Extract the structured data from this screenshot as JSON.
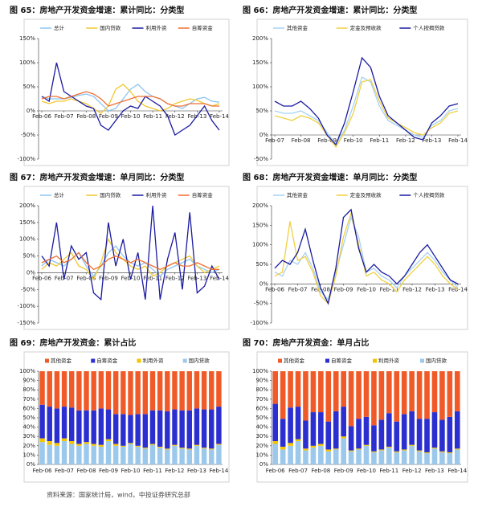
{
  "footer": "资料来源：国家统计局，wind，中投证券研究总部",
  "chart_data": [
    {
      "type": "line",
      "title": "图 65：房地产开发资金增速：累计同比：分类型",
      "categories": [
        "Feb-06",
        null,
        null,
        "Feb-07",
        null,
        null,
        "Feb-08",
        null,
        null,
        "Feb-09",
        null,
        null,
        "Feb-10",
        null,
        null,
        "Feb-11",
        null,
        null,
        "Feb-12",
        null,
        null,
        "Feb-13",
        null,
        null,
        "Feb-14"
      ],
      "ylim": [
        -100,
        150
      ],
      "yticks": [
        {
          "value": -100,
          "label": "-100%"
        },
        {
          "value": -50,
          "label": "-50%"
        },
        {
          "value": 0,
          "label": "0%"
        },
        {
          "value": 50,
          "label": "50%"
        },
        {
          "value": 100,
          "label": "100%"
        },
        {
          "value": 150,
          "label": "150%"
        }
      ],
      "series": [
        {
          "name": "总计",
          "color": "#8ec5f0",
          "values": [
            30,
            25,
            25,
            25,
            28,
            32,
            35,
            30,
            15,
            0,
            5,
            25,
            45,
            55,
            40,
            30,
            25,
            15,
            10,
            5,
            15,
            25,
            28,
            20,
            18
          ]
        },
        {
          "name": "国内贷款",
          "color": "#f0c830",
          "values": [
            20,
            15,
            20,
            20,
            25,
            20,
            15,
            5,
            -5,
            10,
            45,
            55,
            40,
            20,
            10,
            5,
            0,
            5,
            15,
            20,
            25,
            22,
            15,
            10,
            15
          ]
        },
        {
          "name": "利用外资",
          "color": "#1a1aa0",
          "values": [
            30,
            20,
            100,
            40,
            30,
            20,
            10,
            5,
            -30,
            -40,
            -20,
            0,
            10,
            5,
            30,
            20,
            10,
            -10,
            -50,
            -40,
            -30,
            -10,
            10,
            -20,
            -40
          ]
        },
        {
          "name": "自筹资金",
          "color": "#f07030",
          "values": [
            25,
            30,
            30,
            25,
            30,
            35,
            40,
            35,
            25,
            10,
            15,
            20,
            25,
            30,
            30,
            30,
            25,
            15,
            10,
            10,
            15,
            15,
            15,
            10,
            10
          ]
        }
      ]
    },
    {
      "type": "line",
      "title": "图 66：房地产开发资金增速：累计同比：分类型",
      "categories": [
        "Feb-07",
        null,
        null,
        "Feb-08",
        null,
        null,
        "Feb-09",
        null,
        null,
        "Feb-10",
        null,
        null,
        "Feb-11",
        null,
        null,
        "Feb-12",
        null,
        null,
        "Feb-13",
        null,
        null,
        "Feb-14"
      ],
      "ylim": [
        -50,
        200
      ],
      "yticks": [
        {
          "value": -50,
          "label": "-50%"
        },
        {
          "value": 0,
          "label": "0%"
        },
        {
          "value": 50,
          "label": "50%"
        },
        {
          "value": 100,
          "label": "100%"
        },
        {
          "value": 150,
          "label": "150%"
        },
        {
          "value": 200,
          "label": "200%"
        }
      ],
      "series": [
        {
          "name": "其他资金",
          "color": "#a6d2f2",
          "values": [
            50,
            45,
            45,
            50,
            40,
            30,
            5,
            -20,
            10,
            60,
            120,
            110,
            60,
            30,
            20,
            10,
            0,
            -5,
            20,
            30,
            50,
            55
          ]
        },
        {
          "name": "定金及预收款",
          "color": "#f0d040",
          "values": [
            40,
            35,
            30,
            40,
            35,
            25,
            0,
            -25,
            5,
            45,
            110,
            115,
            70,
            35,
            25,
            15,
            5,
            0,
            15,
            25,
            45,
            50
          ]
        },
        {
          "name": "个人按揭贷款",
          "color": "#1a1aa0",
          "values": [
            70,
            60,
            60,
            70,
            55,
            35,
            0,
            -20,
            25,
            90,
            160,
            140,
            80,
            40,
            25,
            10,
            -5,
            -10,
            25,
            40,
            60,
            65
          ]
        }
      ]
    },
    {
      "type": "line",
      "title": "图 67：房地产开发资金增速：单月同比：分类型",
      "categories": [
        "Feb-06",
        null,
        null,
        "Feb-07",
        null,
        null,
        "Feb-08",
        null,
        null,
        "Feb-09",
        null,
        null,
        "Feb-10",
        null,
        null,
        "Feb-11",
        null,
        null,
        "Feb-12",
        null,
        null,
        "Feb-13",
        null,
        null,
        "Feb-14"
      ],
      "ylim": [
        -150,
        200
      ],
      "yticks": [
        {
          "value": -150,
          "label": "-150%"
        },
        {
          "value": -100,
          "label": "-100%"
        },
        {
          "value": -50,
          "label": "-50%"
        },
        {
          "value": 0,
          "label": "0%"
        },
        {
          "value": 50,
          "label": "50%"
        },
        {
          "value": 100,
          "label": "100%"
        },
        {
          "value": 150,
          "label": "150%"
        },
        {
          "value": 200,
          "label": "200%"
        }
      ],
      "series": [
        {
          "name": "总计",
          "color": "#8ec5f0",
          "values": [
            20,
            40,
            30,
            20,
            40,
            60,
            20,
            -10,
            20,
            60,
            80,
            50,
            30,
            20,
            30,
            10,
            -10,
            10,
            20,
            30,
            40,
            20,
            10,
            0,
            10
          ]
        },
        {
          "name": "国内贷款",
          "color": "#f0c830",
          "values": [
            10,
            30,
            20,
            40,
            60,
            20,
            10,
            -20,
            30,
            100,
            60,
            40,
            20,
            10,
            20,
            -10,
            0,
            20,
            30,
            40,
            50,
            20,
            0,
            10,
            20
          ]
        },
        {
          "name": "利用外资",
          "color": "#1a1aa0",
          "values": [
            50,
            20,
            150,
            -20,
            80,
            40,
            60,
            -60,
            -80,
            150,
            20,
            100,
            -20,
            60,
            -80,
            200,
            -80,
            40,
            120,
            -50,
            180,
            -60,
            -40,
            20,
            -20
          ]
        },
        {
          "name": "自筹资金",
          "color": "#f07030",
          "values": [
            30,
            40,
            50,
            30,
            40,
            60,
            30,
            10,
            20,
            40,
            50,
            40,
            30,
            40,
            30,
            20,
            10,
            20,
            30,
            20,
            20,
            30,
            20,
            10,
            10
          ]
        }
      ]
    },
    {
      "type": "line",
      "title": "图 68：房地产开发资金增速：单月同比：分类型",
      "categories": [
        "Feb-06",
        null,
        null,
        "Feb-07",
        null,
        null,
        "Feb-08",
        null,
        null,
        "Feb-09",
        null,
        null,
        "Feb-10",
        null,
        null,
        "Feb-11",
        null,
        null,
        "Feb-12",
        null,
        null,
        "Feb-13",
        null,
        null,
        "Feb-14"
      ],
      "ylim": [
        -100,
        200
      ],
      "yticks": [
        {
          "value": -100,
          "label": "-100%"
        },
        {
          "value": -50,
          "label": "-50%"
        },
        {
          "value": 0,
          "label": "0%"
        },
        {
          "value": 50,
          "label": "50%"
        },
        {
          "value": 100,
          "label": "100%"
        },
        {
          "value": 150,
          "label": "150%"
        },
        {
          "value": 200,
          "label": "200%"
        }
      ],
      "series": [
        {
          "name": "其他资金",
          "color": "#a6d2f2",
          "values": [
            30,
            20,
            60,
            50,
            80,
            40,
            -20,
            -40,
            30,
            100,
            170,
            120,
            30,
            40,
            20,
            10,
            -10,
            20,
            40,
            60,
            80,
            60,
            30,
            10,
            -10
          ]
        },
        {
          "name": "定金及预收款",
          "color": "#f0d040",
          "values": [
            20,
            30,
            160,
            60,
            70,
            30,
            -30,
            -50,
            20,
            120,
            180,
            100,
            20,
            30,
            10,
            0,
            -20,
            10,
            30,
            50,
            70,
            50,
            20,
            0,
            -15
          ]
        },
        {
          "name": "个人按揭贷款",
          "color": "#1a1aa0",
          "values": [
            40,
            60,
            50,
            80,
            140,
            60,
            -10,
            -50,
            40,
            170,
            190,
            90,
            30,
            50,
            30,
            20,
            0,
            20,
            50,
            80,
            100,
            70,
            40,
            10,
            0
          ]
        }
      ]
    },
    {
      "type": "bar",
      "stacked": true,
      "title": "图 69：房地产开发资金：累计占比",
      "categories": [
        "Feb-06",
        null,
        null,
        "Feb-07",
        null,
        null,
        "Feb-08",
        null,
        null,
        "Feb-09",
        null,
        null,
        "Feb-10",
        null,
        null,
        "Feb-11",
        null,
        null,
        "Feb-12",
        null,
        null,
        "Feb-13",
        null,
        null,
        "Feb-14"
      ],
      "ylim": [
        0,
        100
      ],
      "yticks": [
        {
          "value": 0,
          "label": "0%"
        },
        {
          "value": 10,
          "label": "10%"
        },
        {
          "value": 20,
          "label": "20%"
        },
        {
          "value": 30,
          "label": "30%"
        },
        {
          "value": 40,
          "label": "40%"
        },
        {
          "value": 50,
          "label": "50%"
        },
        {
          "value": 60,
          "label": "60%"
        },
        {
          "value": 70,
          "label": "70%"
        },
        {
          "value": 80,
          "label": "80%"
        },
        {
          "value": 90,
          "label": "90%"
        },
        {
          "value": 100,
          "label": "100%"
        }
      ],
      "series": [
        {
          "name": "其他资金",
          "color": "#f05a28",
          "values": [
            36,
            38,
            40,
            38,
            39,
            42,
            42,
            42,
            40,
            41,
            46,
            46,
            47,
            46,
            46,
            42,
            42,
            43,
            41,
            42,
            42,
            40,
            41,
            41,
            38
          ]
        },
        {
          "name": "自筹资金",
          "color": "#2b2fd0",
          "values": [
            36,
            37,
            37,
            34,
            36,
            36,
            34,
            36,
            39,
            32,
            32,
            34,
            30,
            34,
            36,
            36,
            39,
            40,
            38,
            40,
            41,
            39,
            41,
            42,
            40
          ]
        },
        {
          "name": "利用外资",
          "color": "#f5c400",
          "values": [
            4,
            4,
            3,
            3,
            3,
            2,
            2,
            2,
            2,
            2,
            2,
            1,
            1,
            1,
            1,
            1,
            1,
            1,
            1,
            1,
            1,
            1,
            1,
            1,
            1
          ]
        },
        {
          "name": "国内贷款",
          "color": "#9cc8ec",
          "values": [
            24,
            21,
            20,
            25,
            22,
            20,
            22,
            20,
            19,
            25,
            20,
            19,
            22,
            19,
            17,
            21,
            18,
            16,
            20,
            17,
            16,
            20,
            17,
            16,
            21
          ]
        }
      ]
    },
    {
      "type": "bar",
      "stacked": true,
      "title": "图 70：房地产开发资金：单月占比",
      "categories": [
        "Feb-06",
        null,
        null,
        "Feb-07",
        null,
        null,
        "Feb-08",
        null,
        null,
        "Feb-09",
        null,
        null,
        "Feb-10",
        null,
        null,
        "Feb-11",
        null,
        null,
        "Feb-12",
        null,
        null,
        "Feb-13",
        null,
        null,
        "Feb-14"
      ],
      "ylim": [
        0,
        100
      ],
      "yticks": [
        {
          "value": 0,
          "label": "0%"
        },
        {
          "value": 10,
          "label": "10%"
        },
        {
          "value": 20,
          "label": "20%"
        },
        {
          "value": 30,
          "label": "30%"
        },
        {
          "value": 40,
          "label": "40%"
        },
        {
          "value": 50,
          "label": "50%"
        },
        {
          "value": 60,
          "label": "60%"
        },
        {
          "value": 70,
          "label": "70%"
        },
        {
          "value": 80,
          "label": "80%"
        },
        {
          "value": 90,
          "label": "90%"
        },
        {
          "value": 100,
          "label": "100%"
        }
      ],
      "series": [
        {
          "name": "其他资金",
          "color": "#f05a28",
          "values": [
            35,
            51,
            39,
            38,
            53,
            44,
            44,
            54,
            43,
            38,
            59,
            51,
            49,
            58,
            52,
            45,
            54,
            46,
            43,
            51,
            51,
            44,
            52,
            49,
            43
          ]
        },
        {
          "name": "自筹资金",
          "color": "#2b2fd0",
          "values": [
            40,
            30,
            38,
            35,
            30,
            36,
            34,
            30,
            40,
            32,
            26,
            32,
            30,
            28,
            32,
            36,
            32,
            38,
            36,
            34,
            36,
            38,
            34,
            38,
            40
          ]
        },
        {
          "name": "利用外资",
          "color": "#f5c400",
          "values": [
            3,
            3,
            3,
            2,
            2,
            2,
            2,
            2,
            1,
            2,
            1,
            1,
            1,
            1,
            1,
            1,
            1,
            1,
            1,
            1,
            1,
            1,
            1,
            1,
            1
          ]
        },
        {
          "name": "国内贷款",
          "color": "#9cc8ec",
          "values": [
            22,
            16,
            20,
            25,
            15,
            18,
            20,
            14,
            16,
            28,
            14,
            16,
            20,
            13,
            15,
            18,
            13,
            15,
            20,
            14,
            12,
            17,
            13,
            12,
            16
          ]
        }
      ]
    }
  ]
}
